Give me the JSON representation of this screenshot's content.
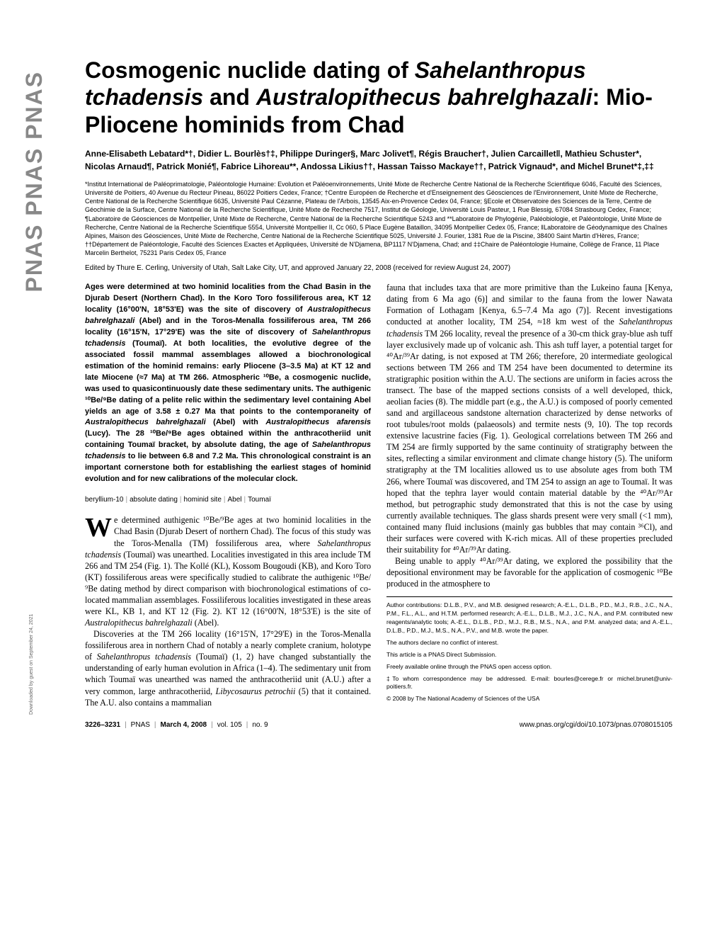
{
  "sidebar_text": "PNAS  PNAS  PNAS",
  "title_parts": {
    "pre1": "Cosmogenic nuclide dating of ",
    "it1": "Sahelanthropus tchadensis",
    "mid1": " and ",
    "it2": "Australopithecus bahrelghazali",
    "post1": ": Mio-Pliocene hominids from Chad"
  },
  "authors": "Anne-Elisabeth Lebatard*†, Didier L. Bourlès†‡, Philippe Duringer§, Marc Jolivet¶, Régis Braucher†, Julien Carcaillet‖, Mathieu Schuster*, Nicolas Arnaud¶, Patrick Monié¶, Fabrice Lihoreau**, Andossa Likius††, Hassan Taisso Mackaye††, Patrick Vignaud*, and Michel Brunet*‡,‡‡",
  "affiliations": "*Institut International de Paléoprimatologie, Paléontologie Humaine: Evolution et Paléoenvironnements, Unité Mixte de Recherche Centre National de la Recherche Scientifique 6046, Faculté des Sciences, Université de Poitiers, 40 Avenue du Recteur Pineau, 86022 Poitiers Cedex, France; †Centre Européen de Recherche et d'Enseignement des Géosciences de l'Environnement, Unité Mixte de Recherche, Centre National de la Recherche Scientifique 6635, Université Paul Cézanne, Plateau de l'Arbois, 13545 Aix-en-Provence Cedex 04, France; §Ecole et Observatoire des Sciences de la Terre, Centre de Géochimie de la Surface, Centre National de la Recherche Scientifique, Unité Mixte de Recherche 7517, Institut de Géologie, Université Louis Pasteur, 1 Rue Blessig, 67084 Strasbourg Cedex, France; ¶Laboratoire de Géosciences de Montpellier, Unité Mixte de Recherche, Centre National de la Recherche Scientifique 5243 and **Laboratoire de Phylogénie, Paléobiologie, et Paléontologie, Unité Mixte de Recherche, Centre National de la Recherche Scientifique 5554, Université Montpellier II, Cc 060, 5 Place Eugène Bataillon, 34095 Montpellier Cedex 05, France; ‖Laboratoire de Géodynamique des Chaînes Alpines, Maison des Géosciences, Unité Mixte de Recherche, Centre National de la Recherche Scientifique 5025, Université J. Fourier, 1381 Rue de la Piscine, 38400 Saint Martin d'Hères, France; ††Département de Paléontologie, Faculté des Sciences Exactes et Appliquées, Université de N'Djamena, BP1117 N'Djamena, Chad; and ‡‡Chaire de Paléontologie Humaine, Collège de France, 11 Place Marcelin Berthelot, 75231 Paris Cedex 05, France",
  "edited": "Edited by Thure E. Cerling, University of Utah, Salt Lake City, UT, and approved January 22, 2008 (received for review August 24, 2007)",
  "abstract_parts": [
    {
      "t": "plain",
      "v": "Ages were determined at two hominid localities from the Chad Basin in the Djurab Desert (Northern Chad). In the Koro Toro fossiliferous area, KT 12 locality (16°00'N, 18°53'E) was the site of discovery of "
    },
    {
      "t": "italic",
      "v": "Australopithecus bahrelghazali"
    },
    {
      "t": "plain",
      "v": " (Abel) and in the Toros-Menalla fossiliferous area, TM 266 locality (16°15'N, 17°29'E) was the site of discovery of "
    },
    {
      "t": "italic",
      "v": "Sahelanthropus tchadensis"
    },
    {
      "t": "plain",
      "v": " (Toumaï). At both localities, the evolutive degree of the associated fossil mammal assemblages allowed a biochronological estimation of the hominid remains: early Pliocene (3–3.5 Ma) at KT 12 and late Miocene (≈7 Ma) at TM 266. Atmospheric ¹⁰Be, a cosmogenic nuclide, was used to quasicontinuously date these sedimentary units. The authigenic ¹⁰Be/⁹Be dating of a pelite relic within the sedimentary level containing Abel yields an age of 3.58 ± 0.27 Ma that points to the contemporaneity of "
    },
    {
      "t": "italic",
      "v": "Australopithecus bahrelghazali"
    },
    {
      "t": "plain",
      "v": " (Abel) with "
    },
    {
      "t": "italic",
      "v": "Australopithecus afarensis"
    },
    {
      "t": "plain",
      "v": " (Lucy). The 28 ¹⁰Be/⁹Be ages obtained within the anthracotheriid unit containing Toumaï bracket, by absolute dating, the age of "
    },
    {
      "t": "italic",
      "v": "Sahelanthropus tchadensis"
    },
    {
      "t": "plain",
      "v": " to lie between 6.8 and 7.2 Ma. This chronological constraint is an important cornerstone both for establishing the earliest stages of hominid evolution and for new calibrations of the molecular clock."
    }
  ],
  "keywords": [
    "beryllium-10",
    "absolute dating",
    "hominid site",
    "Abel",
    "Toumaï"
  ],
  "left_body": {
    "dropcap": "W",
    "p1_parts": [
      {
        "t": "plain",
        "v": "e determined authigenic ¹⁰Be/⁹Be ages at two hominid localities in the Chad Basin (Djurab Desert of northern Chad). The focus of this study was the Toros-Menalla (TM) fossiliferous area, where "
      },
      {
        "t": "italic",
        "v": "Sahelanthropus tchadensis"
      },
      {
        "t": "plain",
        "v": " (Toumaï) was unearthed. Localities investigated in this area include TM 266 and TM 254 (Fig. 1). The Kollé (KL), Kossom Bougoudi (KB), and Koro Toro (KT) fossiliferous areas were specifically studied to calibrate the authigenic ¹⁰Be/⁹Be dating method by direct comparison with biochronological estimations of co-located mammalian assemblages. Fossiliferous localities investigated in these areas were KL, KB 1, and KT 12 (Fig. 2). KT 12 (16°00'N, 18°53'E) is the site of "
      },
      {
        "t": "italic",
        "v": "Australopithecus bahrelghazali"
      },
      {
        "t": "plain",
        "v": " (Abel)."
      }
    ],
    "p2_parts": [
      {
        "t": "plain",
        "v": "Discoveries at the TM 266 locality (16°15'N, 17°29'E) in the Toros-Menalla fossiliferous area in northern Chad of notably a nearly complete cranium, holotype of "
      },
      {
        "t": "italic",
        "v": "Sahelanthropus tchadensis"
      },
      {
        "t": "plain",
        "v": " (Toumaï) (1, 2) have changed substantially the understanding of early human evolution in Africa (1–4). The sedimentary unit from which Toumaï was unearthed was named the anthracotheriid unit (A.U.) after a very common, large anthracotheriid, "
      },
      {
        "t": "italic",
        "v": "Libycosaurus petrochii"
      },
      {
        "t": "plain",
        "v": " (5) that it contained. The A.U. also contains a mammalian"
      }
    ]
  },
  "right_body": {
    "p1_parts": [
      {
        "t": "plain",
        "v": "fauna that includes taxa that are more primitive than the Lukeino fauna [Kenya, dating from 6 Ma ago (6)] and similar to the fauna from the lower Nawata Formation of Lothagam [Kenya, 6.5–7.4 Ma ago (7)]. Recent investigations conducted at another locality, TM 254, ≈18 km west of the "
      },
      {
        "t": "italic",
        "v": "Sahelanthropus tchadensis"
      },
      {
        "t": "plain",
        "v": " TM 266 locality, reveal the presence of a 30-cm thick gray-blue ash tuff layer exclusively made up of volcanic ash. This ash tuff layer, a potential target for ⁴⁰Ar/³⁹Ar dating, is not exposed at TM 266; therefore, 20 intermediate geological sections between TM 266 and TM 254 have been documented to determine its stratigraphic position within the A.U. The sections are uniform in facies across the transect. The base of the mapped sections consists of a well developed, thick, aeolian facies (8). The middle part (e.g., the A.U.) is composed of poorly cemented sand and argillaceous sandstone alternation characterized by dense networks of root tubules/root molds (palaeosols) and termite nests (9, 10). The top records extensive lacustrine facies (Fig. 1). Geological correlations between TM 266 and TM 254 are firmly supported by the same continuity of stratigraphy between the sites, reflecting a similar environment and climate change history (5). The uniform stratigraphy at the TM localities allowed us to use absolute ages from both TM 266, where Toumaï was discovered, and TM 254 to assign an age to Toumaï. It was hoped that the tephra layer would contain material datable by the ⁴⁰Ar/³⁹Ar method, but petrographic study demonstrated that this is not the case by using currently available techniques. The glass shards present were very small (<1 mm), contained many fluid inclusions (mainly gas bubbles that may contain ³⁶Cl), and their surfaces were covered with K-rich micas. All of these properties precluded their suitability for ⁴⁰Ar/³⁹Ar dating."
      }
    ],
    "p2_parts": [
      {
        "t": "plain",
        "v": "Being unable to apply ⁴⁰Ar/³⁹Ar dating, we explored the possibility that the depositional environment may be favorable for the application of cosmogenic ¹⁰Be produced in the atmosphere to"
      }
    ]
  },
  "footnotes": {
    "contrib": "Author contributions: D.L.B., P.V., and M.B. designed research; A.-E.L., D.L.B., P.D., M.J., R.B., J.C., N.A., P.M., F.L., A.L., and H.T.M. performed research; A.-E.L., D.L.B., M.J., J.C., N.A., and P.M. contributed new reagents/analytic tools; A.-E.L., D.L.B., P.D., M.J., R.B., M.S., N.A., and P.M. analyzed data; and A.-E.L., D.L.B., P.D., M.J., M.S., N.A., P.V., and M.B. wrote the paper.",
    "conflict": "The authors declare no conflict of interest.",
    "submission": "This article is a PNAS Direct Submission.",
    "openaccess": "Freely available online through the PNAS open access option.",
    "corresp": "‡To whom correspondence may be addressed. E-mail: bourles@cerege.fr or michel.brunet@univ-poitiers.fr.",
    "copyright": "© 2008 by The National Academy of Sciences of the USA"
  },
  "pagefoot": {
    "left_pages": "3226–3231",
    "left_pnas": "PNAS",
    "left_date": "March 4, 2008",
    "left_vol": "vol. 105",
    "left_no": "no. 9",
    "right": "www.pnas.org/cgi/doi/10.1073/pnas.0708015105"
  },
  "download_note": "Downloaded by guest on September 24, 2021"
}
